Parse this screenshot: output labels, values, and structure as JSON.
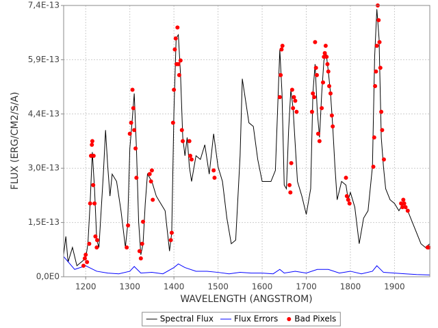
{
  "chart_data": {
    "type": "line",
    "xlabel": "WAVELENGTH (ANGSTROM)",
    "ylabel": "FLUX (ERG/CM2/S/A)",
    "xlim": [
      1150,
      1980
    ],
    "xticks": [
      1200,
      1300,
      1400,
      1500,
      1600,
      1700,
      1800,
      1900
    ],
    "ylim": [
      0,
      7.4e-13
    ],
    "yticks": [
      {
        "value": 0,
        "label": "0,0E0"
      },
      {
        "value": 1.48e-13,
        "label": "1,5E-13"
      },
      {
        "value": 2.96e-13,
        "label": "3,0E-13"
      },
      {
        "value": 4.44e-13,
        "label": "4,4E-13"
      },
      {
        "value": 5.92e-13,
        "label": "5,9E-13"
      },
      {
        "value": 7.4e-13,
        "label": "7,4E-13"
      }
    ],
    "grid": true,
    "legend": "bottom",
    "series": [
      {
        "name": "Spectral Flux",
        "type": "line",
        "color": "#000000",
        "x": [
          1150,
          1155,
          1160,
          1170,
          1180,
          1190,
          1200,
          1205,
          1210,
          1215,
          1220,
          1225,
          1230,
          1240,
          1245,
          1250,
          1255,
          1260,
          1270,
          1280,
          1290,
          1295,
          1300,
          1305,
          1310,
          1315,
          1320,
          1325,
          1330,
          1335,
          1340,
          1350,
          1355,
          1360,
          1370,
          1380,
          1390,
          1395,
          1400,
          1405,
          1410,
          1415,
          1420,
          1425,
          1430,
          1435,
          1440,
          1450,
          1460,
          1470,
          1480,
          1490,
          1500,
          1510,
          1520,
          1530,
          1540,
          1550,
          1555,
          1560,
          1570,
          1580,
          1590,
          1600,
          1610,
          1620,
          1630,
          1640,
          1645,
          1650,
          1655,
          1660,
          1665,
          1670,
          1680,
          1690,
          1700,
          1710,
          1715,
          1720,
          1725,
          1730,
          1735,
          1740,
          1745,
          1750,
          1755,
          1760,
          1765,
          1770,
          1780,
          1790,
          1795,
          1800,
          1810,
          1820,
          1830,
          1840,
          1850,
          1855,
          1860,
          1865,
          1870,
          1875,
          1880,
          1890,
          1900,
          1910,
          1920,
          1930,
          1940,
          1950,
          1960,
          1970,
          1980
        ],
        "values": [
          6e-14,
          1.1e-13,
          4e-14,
          8e-14,
          3e-14,
          4e-14,
          5e-14,
          9e-14,
          2e-13,
          3.4e-13,
          2.4e-13,
          1e-13,
          8e-14,
          2.8e-13,
          4e-13,
          3e-13,
          2.2e-13,
          2.8e-13,
          2.6e-13,
          1.8e-13,
          8e-14,
          1.4e-13,
          3.5e-13,
          4.2e-13,
          5e-13,
          3.5e-13,
          1.5e-13,
          6e-14,
          9e-14,
          2e-13,
          2.8e-13,
          2.6e-13,
          2.4e-13,
          2.2e-13,
          2e-13,
          1.8e-13,
          7e-14,
          1.2e-13,
          4.5e-13,
          6.5e-13,
          6.6e-13,
          5.5e-13,
          3.8e-13,
          3.3e-13,
          3.8e-13,
          3e-13,
          2.6e-13,
          3.3e-13,
          3.2e-13,
          3.6e-13,
          2.8e-13,
          3.9e-13,
          3e-13,
          2.6e-13,
          1.6e-13,
          9e-14,
          1e-13,
          3.3e-13,
          5.4e-13,
          5e-13,
          4.2e-13,
          4.1e-13,
          3.2e-13,
          2.6e-13,
          2.6e-13,
          2.6e-13,
          2.9e-13,
          6.2e-13,
          5e-13,
          2.5e-13,
          2.4e-13,
          4e-13,
          5.1e-13,
          4.6e-13,
          2.6e-13,
          2.2e-13,
          1.7e-13,
          2.4e-13,
          5e-13,
          5.8e-13,
          4.5e-13,
          3.8e-13,
          5e-13,
          5.9e-13,
          6.1e-13,
          5.6e-13,
          5e-13,
          4.1e-13,
          3e-13,
          2.1e-13,
          2.6e-13,
          2.5e-13,
          2.1e-13,
          2.3e-13,
          1.9e-13,
          9e-14,
          1.6e-13,
          1.8e-13,
          3e-13,
          6e-13,
          7.3e-13,
          6.5e-13,
          3.8e-13,
          3e-13,
          2.4e-13,
          2.1e-13,
          2e-13,
          1.8e-13,
          2e-13,
          1.8e-13,
          1.5e-13,
          1.2e-13,
          9e-14,
          8e-14,
          9e-14
        ]
      },
      {
        "name": "Flux Errors",
        "type": "line",
        "color": "#0000ff",
        "x": [
          1150,
          1175,
          1200,
          1225,
          1250,
          1275,
          1300,
          1310,
          1325,
          1350,
          1375,
          1400,
          1410,
          1425,
          1450,
          1475,
          1500,
          1525,
          1550,
          1575,
          1600,
          1625,
          1640,
          1650,
          1675,
          1700,
          1725,
          1750,
          1775,
          1800,
          1825,
          1850,
          1860,
          1875,
          1900,
          1925,
          1950,
          1980
        ],
        "values": [
          5.5e-14,
          2e-14,
          3e-14,
          1.5e-14,
          1e-14,
          8e-15,
          1.5e-14,
          2.8e-14,
          1e-14,
          1.2e-14,
          8e-15,
          2.5e-14,
          3.5e-14,
          2.5e-14,
          1.5e-14,
          1.5e-14,
          1.2e-14,
          8e-15,
          1.2e-14,
          1e-14,
          1e-14,
          8e-15,
          2e-14,
          1e-14,
          1.5e-14,
          1e-14,
          2e-14,
          2e-14,
          1e-14,
          1.5e-14,
          8e-15,
          1.5e-14,
          3e-14,
          1.2e-14,
          1e-14,
          8e-15,
          6e-15,
          5e-15
        ]
      },
      {
        "name": "Bad Pixels",
        "type": "scatter",
        "color": "#ff0000",
        "x": [
          1195,
          1198,
          1200,
          1203,
          1208,
          1210,
          1212,
          1214,
          1215,
          1217,
          1218,
          1220,
          1222,
          1225,
          1226,
          1293,
          1296,
          1300,
          1303,
          1306,
          1308,
          1310,
          1313,
          1315,
          1322,
          1325,
          1328,
          1330,
          1345,
          1348,
          1350,
          1352,
          1393,
          1395,
          1398,
          1400,
          1402,
          1404,
          1406,
          1408,
          1410,
          1412,
          1415,
          1418,
          1420,
          1435,
          1437,
          1440,
          1490,
          1492,
          1640,
          1642,
          1644,
          1646,
          1662,
          1664,
          1666,
          1668,
          1670,
          1672,
          1675,
          1678,
          1713,
          1715,
          1718,
          1720,
          1722,
          1724,
          1727,
          1730,
          1735,
          1738,
          1740,
          1742,
          1744,
          1746,
          1748,
          1750,
          1752,
          1755,
          1758,
          1760,
          1790,
          1792,
          1795,
          1798,
          1852,
          1854,
          1856,
          1858,
          1860,
          1862,
          1864,
          1866,
          1868,
          1870,
          1872,
          1876,
          1915,
          1918,
          1920,
          1922,
          1925,
          1930,
          1975,
          1978
        ],
        "values": [
          3e-14,
          5e-14,
          6e-14,
          4e-14,
          9e-14,
          2e-13,
          3.3e-13,
          3.6e-13,
          3.7e-13,
          2.5e-13,
          3.3e-13,
          2e-13,
          1.1e-13,
          8e-14,
          1e-13,
          8e-14,
          1.4e-13,
          3.9e-13,
          4.2e-13,
          5.1e-13,
          4.6e-13,
          4e-13,
          3.5e-13,
          2.7e-13,
          7e-14,
          5e-14,
          9e-14,
          1.5e-13,
          2.8e-13,
          2.6e-13,
          2.9e-13,
          2.1e-13,
          1e-13,
          1.2e-13,
          4.2e-13,
          5.1e-13,
          6.2e-13,
          6.5e-13,
          5.8e-13,
          6.8e-13,
          5.8e-13,
          5.5e-13,
          5.9e-13,
          4e-13,
          3.7e-13,
          3.7e-13,
          3.3e-13,
          3.2e-13,
          2.9e-13,
          2.7e-13,
          4.9e-13,
          5.5e-13,
          6.2e-13,
          6.3e-13,
          2.5e-13,
          2.3e-13,
          3.1e-13,
          5.1e-13,
          4.6e-13,
          4.9e-13,
          4.8e-13,
          4.5e-13,
          4.5e-13,
          5e-13,
          4.9e-13,
          6.4e-13,
          5.7e-13,
          5.5e-13,
          3.9e-13,
          3.7e-13,
          4.6e-13,
          5.3e-13,
          6e-13,
          6.1e-13,
          6.3e-13,
          6e-13,
          5.8e-13,
          5.6e-13,
          5.2e-13,
          5e-13,
          4.4e-13,
          4.1e-13,
          2.7e-13,
          2.2e-13,
          2.1e-13,
          2e-13,
          3e-13,
          3.8e-13,
          5.2e-13,
          5.6e-13,
          6.3e-13,
          7.4e-13,
          7e-13,
          6.4e-13,
          5.7e-13,
          4.5e-13,
          4e-13,
          3.2e-13,
          2e-13,
          1.9e-13,
          2.1e-13,
          2e-13,
          1.9e-13,
          1.8e-13,
          8e-14,
          8e-14
        ]
      }
    ]
  }
}
